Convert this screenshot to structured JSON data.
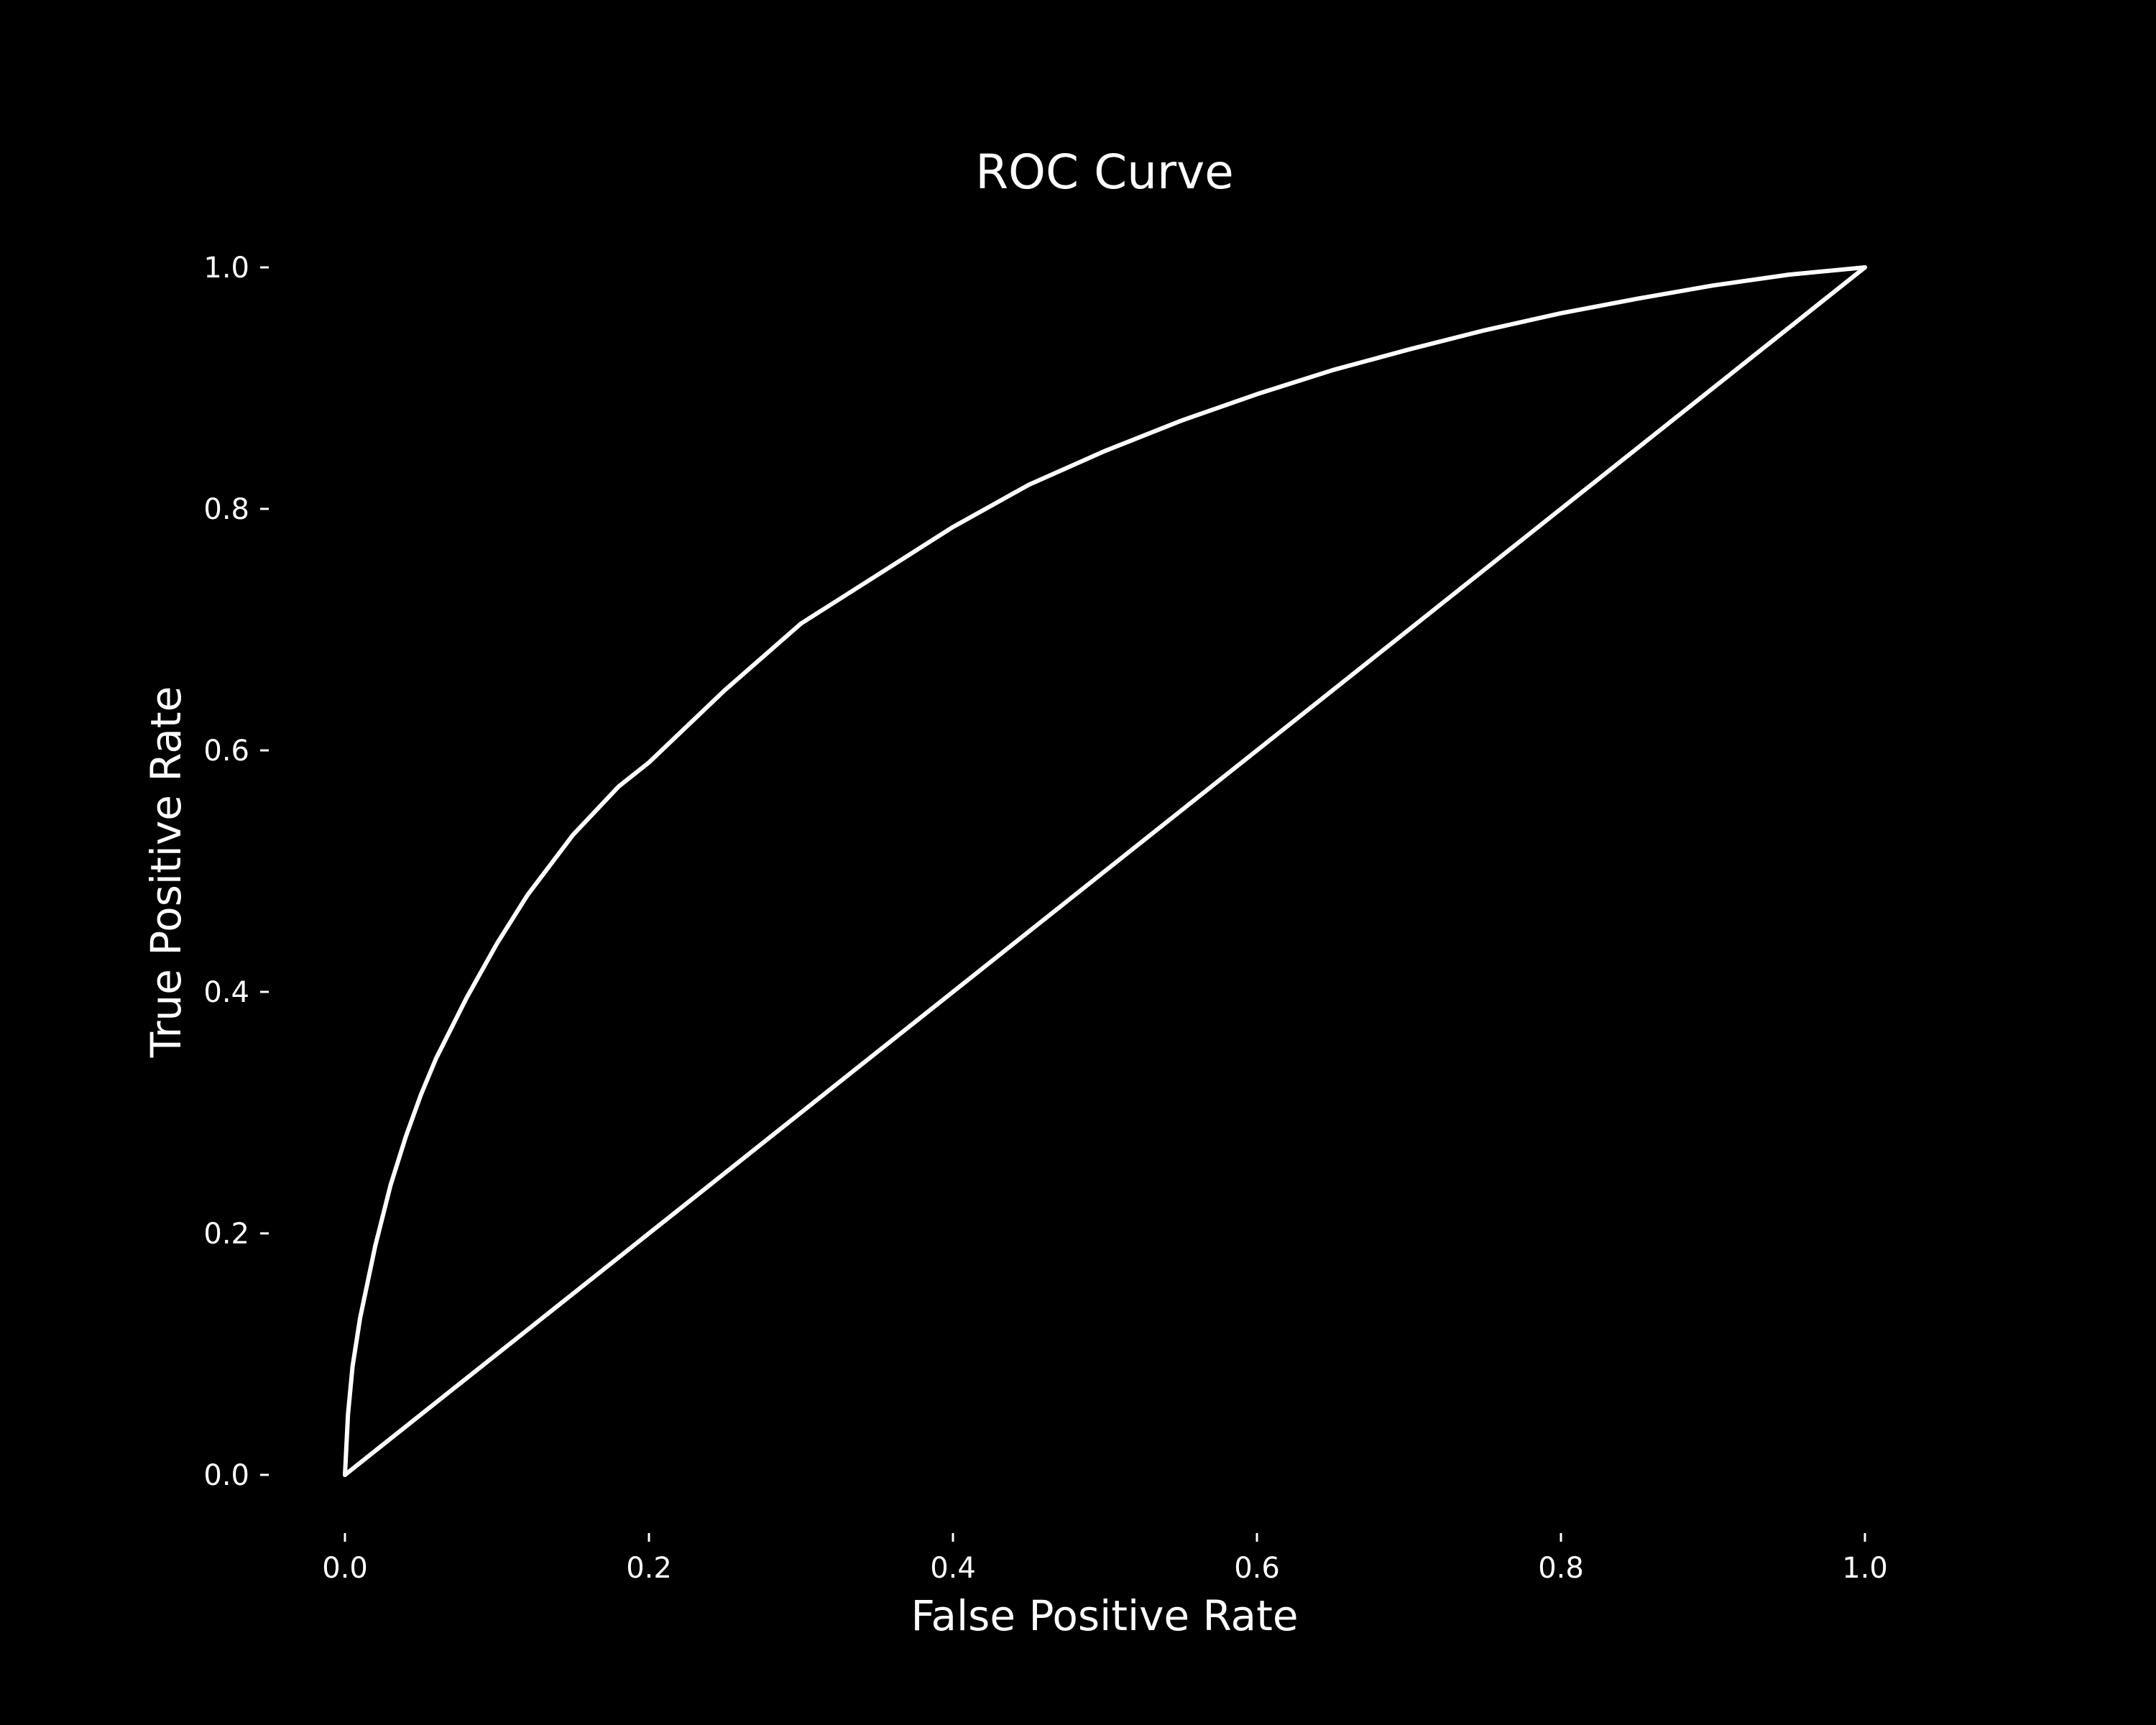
{
  "chart_data": {
    "type": "line",
    "title": "ROC Curve",
    "xlabel": "False Positive Rate",
    "ylabel": "True Positive Rate",
    "xlim": [
      0.0,
      1.0
    ],
    "ylim": [
      0.0,
      1.0
    ],
    "grid": false,
    "background": "#000000",
    "line_color": "#ffffff",
    "x_ticks": [
      "0.0",
      "0.2",
      "0.4",
      "0.6",
      "0.8",
      "1.0"
    ],
    "y_ticks": [
      "0.0",
      "0.2",
      "0.4",
      "0.6",
      "0.8",
      "1.0"
    ],
    "series": [
      {
        "x": [
          0.0,
          0.002,
          0.005,
          0.01,
          0.02,
          0.03,
          0.04,
          0.05,
          0.06,
          0.08,
          0.1,
          0.12,
          0.15,
          0.18,
          0.2,
          0.25,
          0.3,
          0.35,
          0.4,
          0.45,
          0.5,
          0.55,
          0.6,
          0.65,
          0.7,
          0.75,
          0.8,
          0.85,
          0.9,
          0.95,
          1.0
        ],
        "y": [
          0.0,
          0.05,
          0.09,
          0.13,
          0.19,
          0.24,
          0.28,
          0.315,
          0.345,
          0.395,
          0.44,
          0.48,
          0.53,
          0.57,
          0.59,
          0.65,
          0.705,
          0.745,
          0.785,
          0.82,
          0.848,
          0.873,
          0.895,
          0.915,
          0.932,
          0.948,
          0.962,
          0.974,
          0.985,
          0.994,
          1.0
        ]
      },
      {
        "x": [
          0.0,
          1.0
        ],
        "y": [
          0.0,
          1.0
        ]
      }
    ]
  }
}
